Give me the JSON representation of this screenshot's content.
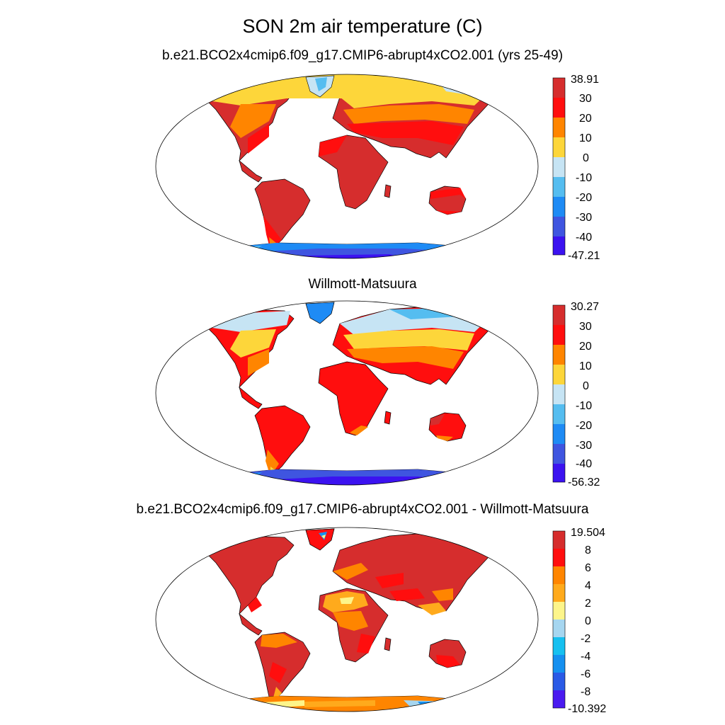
{
  "title": "SON 2m air temperature (C)",
  "panels": [
    {
      "subtitle": "b.e21.BCO2x4cmip6.f09_g17.CMIP6-abrupt4xCO2.001 (yrs 25-49)",
      "colorbar": {
        "colors": [
          "#3b12f0",
          "#3f55e0",
          "#1e8bf5",
          "#55bdf0",
          "#c6e4f4",
          "#fdd63a",
          "#ff8500",
          "#ff0e0e",
          "#d62d2d"
        ],
        "labels": [
          "-47.21",
          "-40",
          "-30",
          "-20",
          "-10",
          "0",
          "10",
          "20",
          "30",
          "38.91"
        ]
      }
    },
    {
      "subtitle": "Willmott-Matsuura",
      "colorbar": {
        "colors": [
          "#3b12f0",
          "#3f55e0",
          "#1e8bf5",
          "#55bdf0",
          "#c6e4f4",
          "#fdd63a",
          "#ff8500",
          "#ff0e0e",
          "#d62d2d"
        ],
        "labels": [
          "-56.32",
          "-40",
          "-30",
          "-20",
          "-10",
          "0",
          "10",
          "20",
          "30",
          "30.27"
        ]
      }
    },
    {
      "subtitle": "b.e21.BCO2x4cmip6.f09_g17.CMIP6-abrupt4xCO2.001 - Willmott-Matsuura",
      "colorbar": {
        "colors": [
          "#4a1af0",
          "#2a5ae6",
          "#1590f0",
          "#16c0f0",
          "#a6d6f0",
          "#fdf58a",
          "#ffaa1c",
          "#ff8500",
          "#ff0e0e",
          "#d62d2d"
        ],
        "labels": [
          "-10.392",
          "-8",
          "-6",
          "-4",
          "-2",
          "0",
          "2",
          "4",
          "6",
          "8",
          "19.504"
        ]
      }
    }
  ]
}
